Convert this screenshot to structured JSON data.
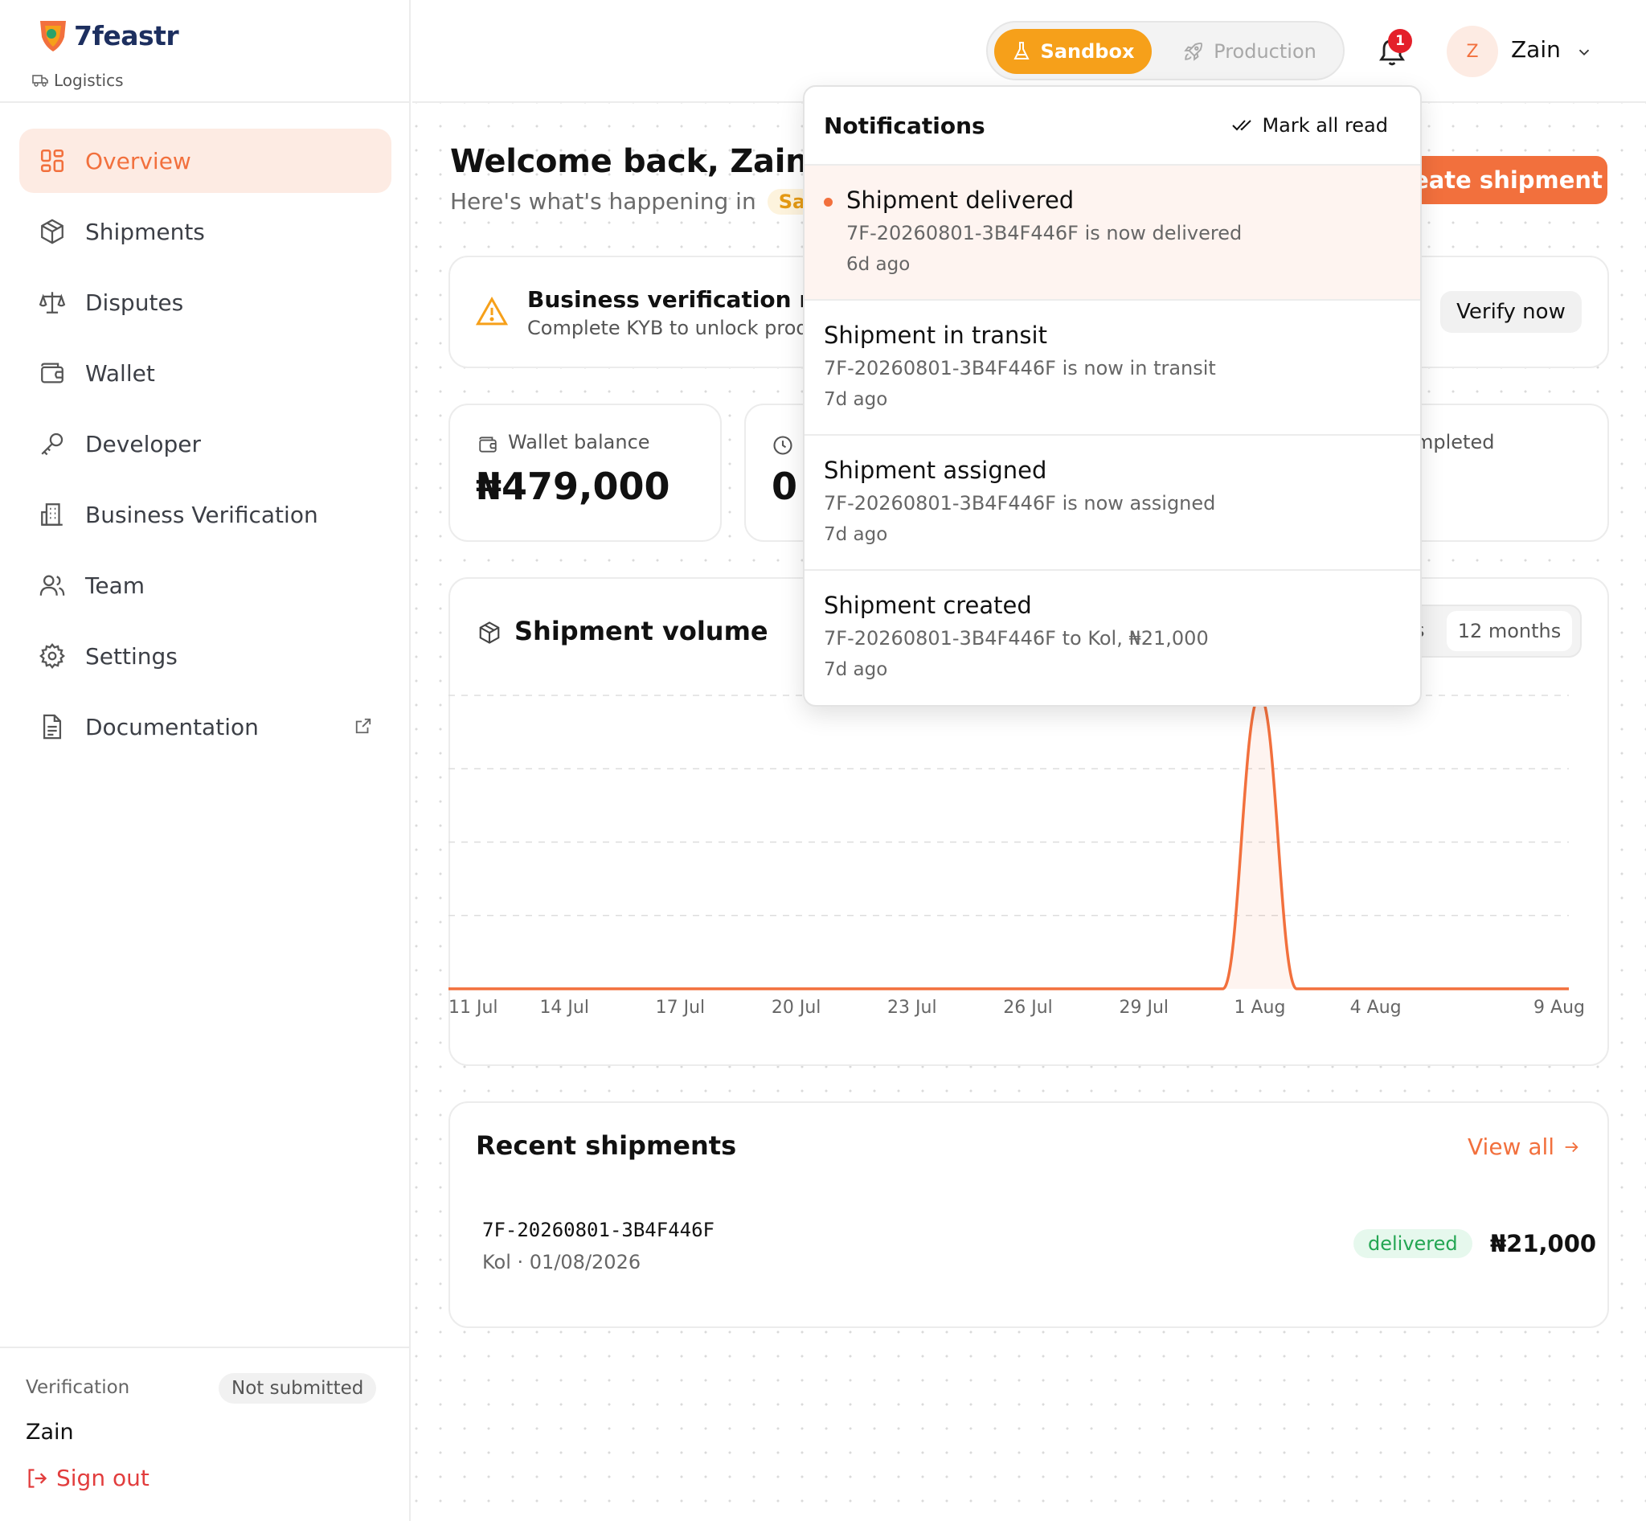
{
  "app": {
    "brand_name": "7feastr",
    "brand_sub": "Logistics"
  },
  "sidebar": {
    "items": [
      {
        "label": "Overview",
        "icon": "grid-icon",
        "active": true
      },
      {
        "label": "Shipments",
        "icon": "box-icon"
      },
      {
        "label": "Disputes",
        "icon": "scale-icon"
      },
      {
        "label": "Wallet",
        "icon": "wallet-icon"
      },
      {
        "label": "Developer",
        "icon": "key-icon"
      },
      {
        "label": "Business Verification",
        "icon": "building-icon"
      },
      {
        "label": "Team",
        "icon": "users-icon"
      },
      {
        "label": "Settings",
        "icon": "gear-icon"
      },
      {
        "label": "Documentation",
        "icon": "document-icon",
        "external": true
      }
    ],
    "verification_label": "Verification",
    "verification_status": "Not submitted",
    "user_name": "Zain",
    "sign_out": "Sign out"
  },
  "header": {
    "env_sandbox": "Sandbox",
    "env_production": "Production",
    "notification_count": "1",
    "avatar_initial": "Z",
    "user_name": "Zain"
  },
  "main": {
    "welcome": "Welcome back, Zain",
    "subtitle": "Here's what's happening in",
    "env_pill": "Sa",
    "create_button": "eate shipment",
    "kyb": {
      "title": "Business verification req",
      "text": "Complete KYB to unlock prod",
      "button": "Verify now"
    },
    "stats": {
      "wallet_label": "Wallet balance",
      "wallet_value": "₦479,000",
      "pending_value": "0",
      "completed_label": "mpleted"
    },
    "chart": {
      "title": "Shipment volume",
      "range_prev": "s",
      "range_active": "12 months"
    },
    "recent": {
      "title": "Recent shipments",
      "view_all": "View all",
      "rows": [
        {
          "id": "7F-20260801-3B4F446F",
          "meta": "Kol · 01/08/2026",
          "status": "delivered",
          "amount": "₦21,000"
        }
      ]
    }
  },
  "notifications": {
    "title": "Notifications",
    "mark_all": "Mark all read",
    "items": [
      {
        "title": "Shipment delivered",
        "message": "7F-20260801-3B4F446F is now delivered",
        "time": "6d ago",
        "unread": true
      },
      {
        "title": "Shipment in transit",
        "message": "7F-20260801-3B4F446F is now in transit",
        "time": "7d ago"
      },
      {
        "title": "Shipment assigned",
        "message": "7F-20260801-3B4F446F is now assigned",
        "time": "7d ago"
      },
      {
        "title": "Shipment created",
        "message": "7F-20260801-3B4F446F to Kol, ₦21,000",
        "time": "7d ago"
      }
    ]
  },
  "colors": {
    "accent": "#f2703d",
    "sandbox": "#f6a01a",
    "danger": "#e23d3d",
    "success": "#24a653"
  },
  "chart_data": {
    "type": "area",
    "title": "Shipment volume",
    "x": [
      "11 Jul",
      "14 Jul",
      "17 Jul",
      "20 Jul",
      "23 Jul",
      "26 Jul",
      "29 Jul",
      "1 Aug",
      "4 Aug",
      "9 Aug"
    ],
    "tick_labels": [
      "11 Jul",
      "14 Jul",
      "17 Jul",
      "20 Jul",
      "23 Jul",
      "26 Jul",
      "29 Jul",
      "1 Aug",
      "4 Aug",
      "9 Aug"
    ],
    "series": [
      {
        "values": [
          0,
          0,
          0,
          0,
          0,
          0,
          0,
          1,
          0,
          0
        ]
      }
    ],
    "xlabel": "",
    "ylabel": "",
    "ylim": [
      0,
      1
    ],
    "grid": true,
    "color": "#f2703d"
  }
}
